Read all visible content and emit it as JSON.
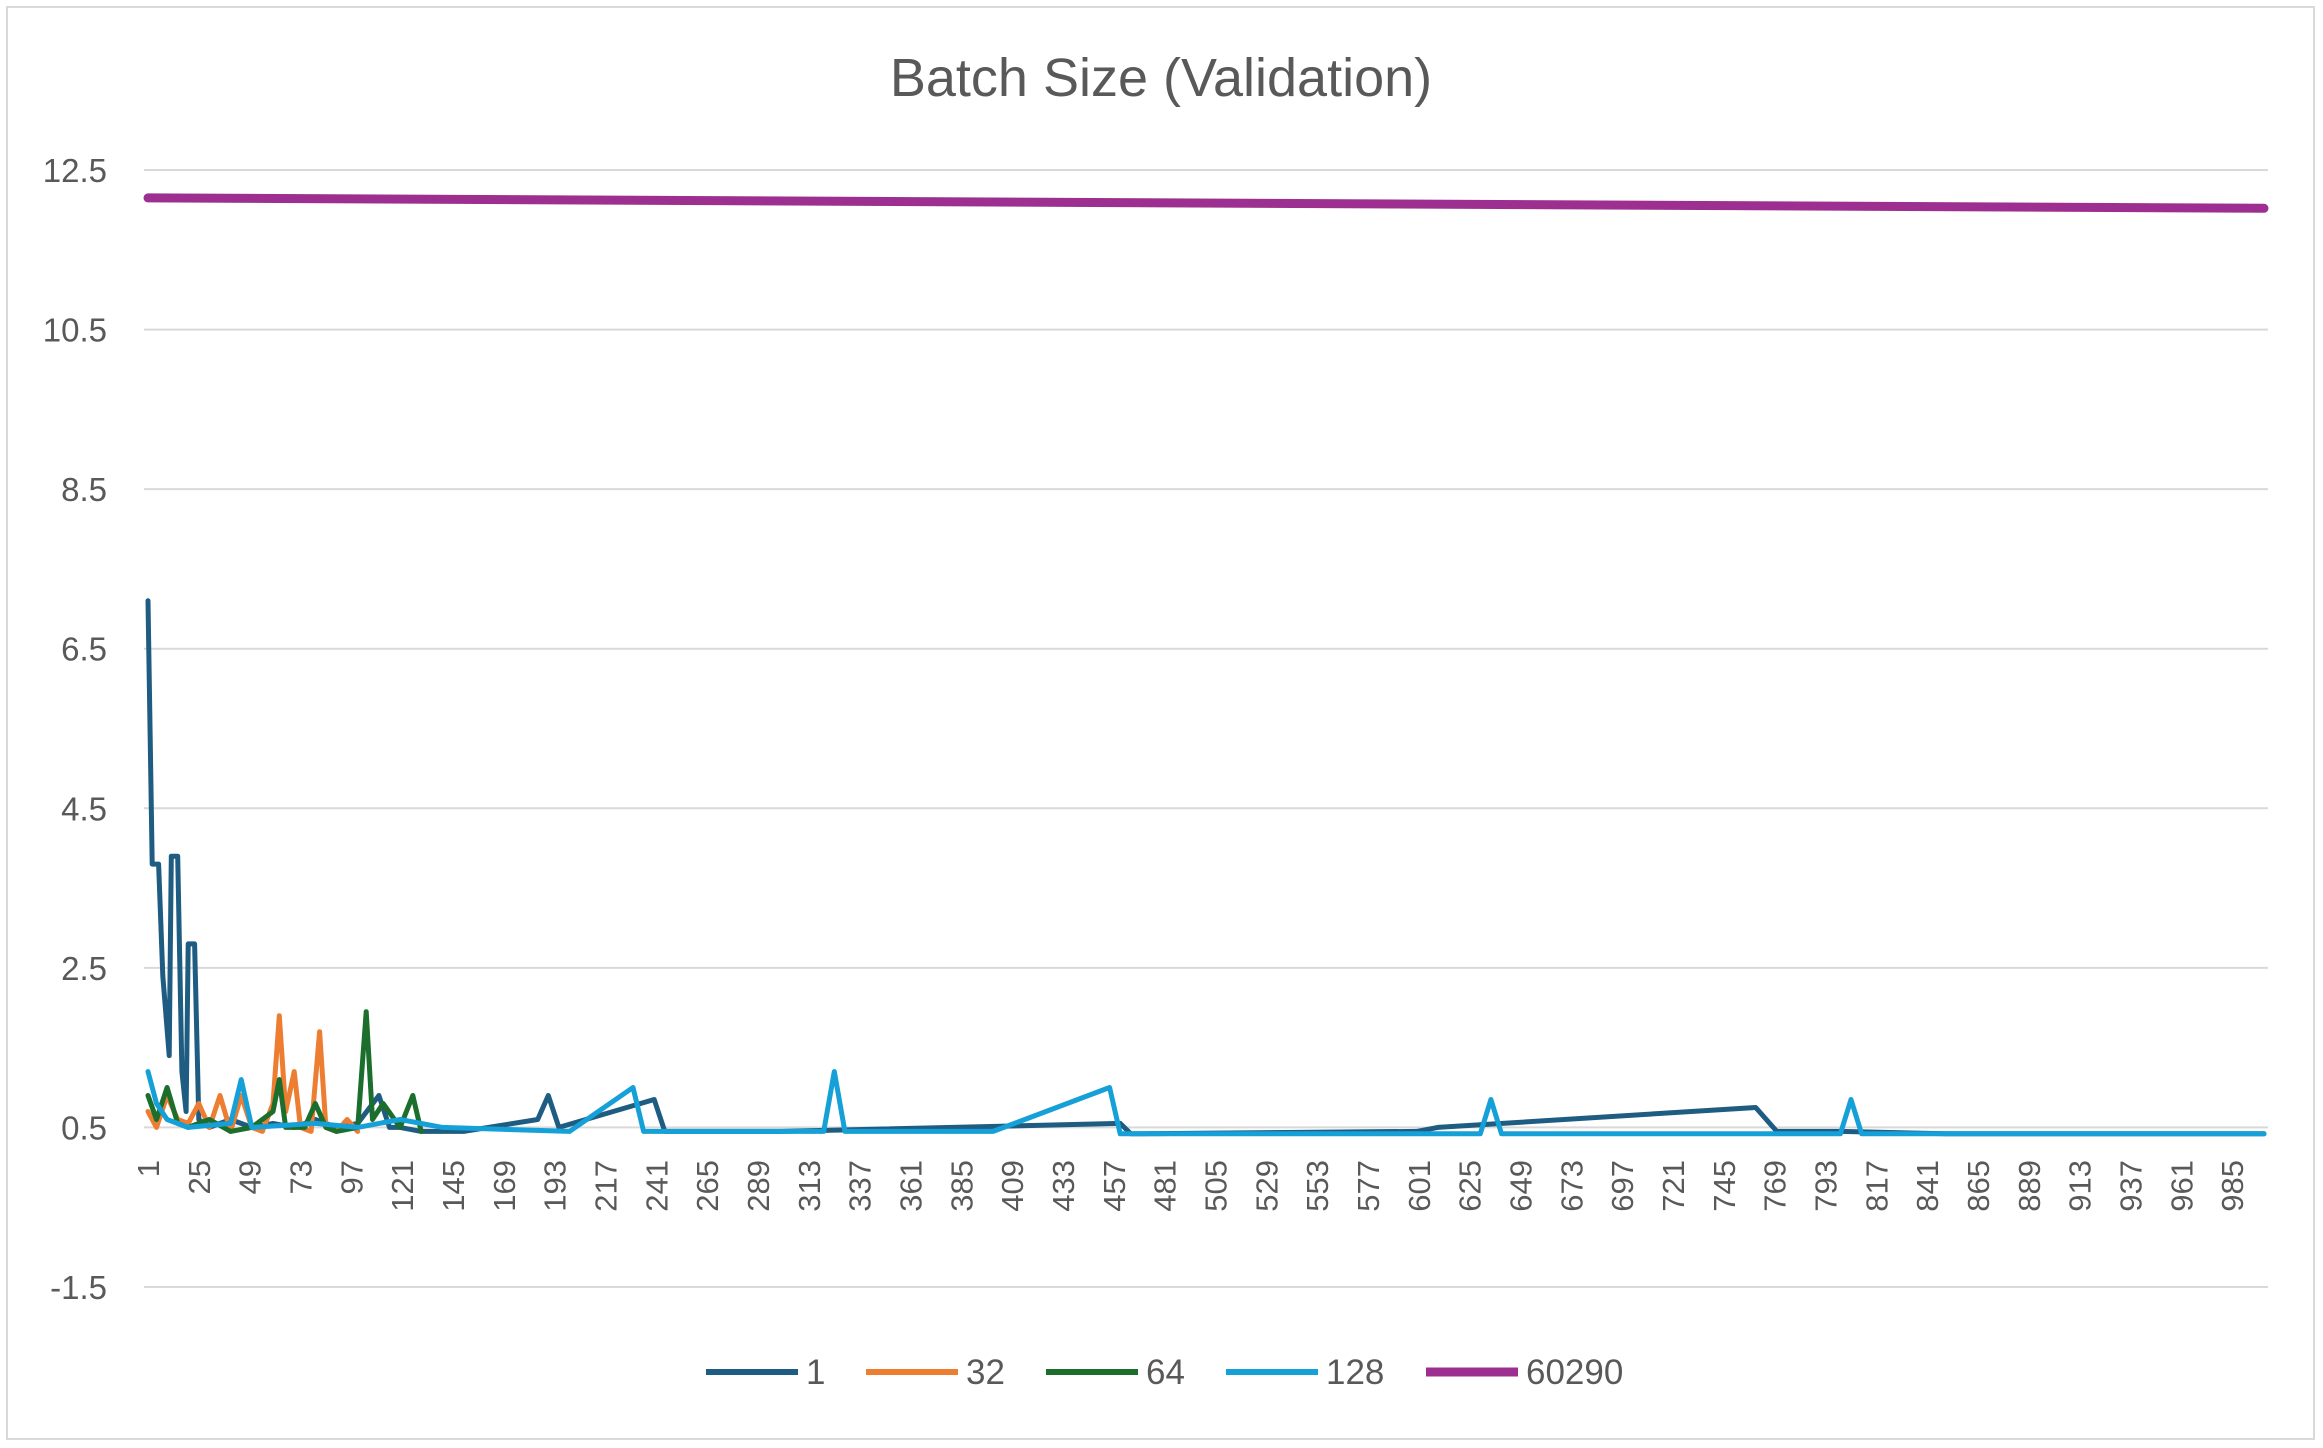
{
  "chart_data": {
    "type": "line",
    "title": "Batch Size (Validation)",
    "xlabel": "",
    "ylabel": "",
    "ylim": [
      -1.5,
      12.5
    ],
    "yticks": [
      12.5,
      10.5,
      8.5,
      6.5,
      4.5,
      2.5,
      0.5,
      -1.5
    ],
    "x_range": [
      1,
      1000
    ],
    "x_tick_labels": [
      "1",
      "25",
      "49",
      "73",
      "97",
      "121",
      "145",
      "169",
      "193",
      "217",
      "241",
      "265",
      "289",
      "313",
      "337",
      "361",
      "385",
      "409",
      "433",
      "457",
      "481",
      "505",
      "529",
      "553",
      "577",
      "601",
      "625",
      "649",
      "673",
      "697",
      "721",
      "745",
      "769",
      "793",
      "817",
      "841",
      "865",
      "889",
      "913",
      "937",
      "961",
      "985"
    ],
    "grid": "horizontal",
    "legend_position": "bottom",
    "series": [
      {
        "name": "1",
        "color": "#1f5c82",
        "points": [
          [
            1,
            7.1
          ],
          [
            3,
            3.8
          ],
          [
            6,
            3.8
          ],
          [
            8,
            2.4
          ],
          [
            11,
            1.4
          ],
          [
            12,
            3.9
          ],
          [
            15,
            3.9
          ],
          [
            17,
            1.2
          ],
          [
            19,
            0.7
          ],
          [
            20,
            2.8
          ],
          [
            23,
            2.8
          ],
          [
            25,
            0.6
          ],
          [
            30,
            0.5
          ],
          [
            40,
            0.6
          ],
          [
            50,
            0.5
          ],
          [
            60,
            0.55
          ],
          [
            70,
            0.5
          ],
          [
            80,
            0.6
          ],
          [
            90,
            0.5
          ],
          [
            100,
            0.55
          ],
          [
            110,
            0.9
          ],
          [
            115,
            0.5
          ],
          [
            120,
            0.5
          ],
          [
            130,
            0.45
          ],
          [
            150,
            0.45
          ],
          [
            185,
            0.6
          ],
          [
            190,
            0.9
          ],
          [
            195,
            0.5
          ],
          [
            240,
            0.85
          ],
          [
            245,
            0.45
          ],
          [
            300,
            0.45
          ],
          [
            460,
            0.55
          ],
          [
            465,
            0.42
          ],
          [
            600,
            0.45
          ],
          [
            610,
            0.5
          ],
          [
            760,
            0.75
          ],
          [
            770,
            0.45
          ],
          [
            800,
            0.45
          ],
          [
            850,
            0.42
          ],
          [
            1000,
            0.42
          ]
        ]
      },
      {
        "name": "32",
        "color": "#ed7d31",
        "points": [
          [
            1,
            0.7
          ],
          [
            5,
            0.5
          ],
          [
            10,
            0.9
          ],
          [
            15,
            0.6
          ],
          [
            20,
            0.55
          ],
          [
            25,
            0.8
          ],
          [
            30,
            0.5
          ],
          [
            35,
            0.9
          ],
          [
            40,
            0.45
          ],
          [
            45,
            0.9
          ],
          [
            50,
            0.5
          ],
          [
            55,
            0.45
          ],
          [
            60,
            0.8
          ],
          [
            63,
            1.9
          ],
          [
            66,
            0.7
          ],
          [
            70,
            1.2
          ],
          [
            73,
            0.5
          ],
          [
            78,
            0.45
          ],
          [
            82,
            1.7
          ],
          [
            85,
            0.5
          ],
          [
            90,
            0.45
          ],
          [
            95,
            0.6
          ],
          [
            100,
            0.45
          ]
        ]
      },
      {
        "name": "64",
        "color": "#1b6e2c",
        "points": [
          [
            1,
            0.9
          ],
          [
            5,
            0.6
          ],
          [
            10,
            1.0
          ],
          [
            15,
            0.55
          ],
          [
            20,
            0.5
          ],
          [
            30,
            0.6
          ],
          [
            40,
            0.45
          ],
          [
            50,
            0.5
          ],
          [
            60,
            0.7
          ],
          [
            63,
            1.1
          ],
          [
            66,
            0.5
          ],
          [
            75,
            0.5
          ],
          [
            80,
            0.8
          ],
          [
            85,
            0.5
          ],
          [
            90,
            0.45
          ],
          [
            100,
            0.5
          ],
          [
            104,
            1.95
          ],
          [
            107,
            0.6
          ],
          [
            112,
            0.8
          ],
          [
            120,
            0.5
          ],
          [
            126,
            0.9
          ],
          [
            130,
            0.45
          ]
        ]
      },
      {
        "name": "128",
        "color": "#15a0d8",
        "points": [
          [
            1,
            1.2
          ],
          [
            5,
            0.8
          ],
          [
            10,
            0.6
          ],
          [
            20,
            0.5
          ],
          [
            40,
            0.55
          ],
          [
            45,
            1.1
          ],
          [
            50,
            0.5
          ],
          [
            80,
            0.55
          ],
          [
            100,
            0.5
          ],
          [
            120,
            0.6
          ],
          [
            140,
            0.5
          ],
          [
            200,
            0.45
          ],
          [
            230,
            1.0
          ],
          [
            235,
            0.45
          ],
          [
            320,
            0.45
          ],
          [
            325,
            1.2
          ],
          [
            330,
            0.45
          ],
          [
            400,
            0.45
          ],
          [
            455,
            1.0
          ],
          [
            460,
            0.42
          ],
          [
            630,
            0.42
          ],
          [
            635,
            0.85
          ],
          [
            640,
            0.42
          ],
          [
            800,
            0.42
          ],
          [
            805,
            0.85
          ],
          [
            810,
            0.42
          ],
          [
            1000,
            0.42
          ]
        ]
      },
      {
        "name": "60290",
        "color": "#9c2f8f",
        "points": [
          [
            1,
            12.15
          ],
          [
            1000,
            12.02
          ]
        ]
      }
    ]
  }
}
